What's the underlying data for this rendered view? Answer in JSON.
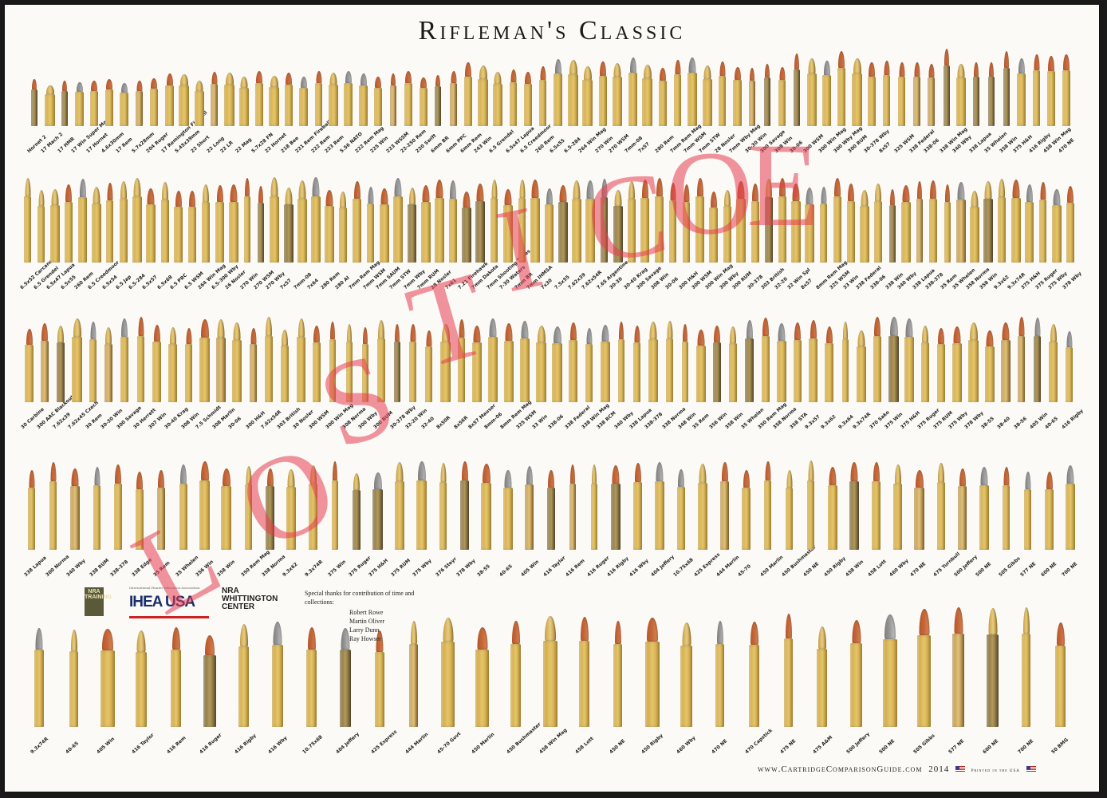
{
  "title": "Rifleman's Classic",
  "footer": {
    "site": "www.CartridgeComparisonGuide.com",
    "year": "2014",
    "credit": "Printed in the USA"
  },
  "thanks": {
    "intro": "Special thanks for contribution of time and collections:",
    "names": [
      "Robert Rowe",
      "Martin Oliver",
      "Larry Dunn",
      "Ray Howser"
    ]
  },
  "logos": {
    "nra": "NRA TRAINING",
    "ihea": "IHEA USA",
    "ihea_sub": "International Hunter Education Association",
    "whittington": [
      "NRA",
      "WHITTINGTON",
      "CENTER"
    ]
  },
  "watermark": "LOSTICOE",
  "colors": {
    "brass": "#c9a13e",
    "brass_light": "#e6c56a",
    "copper": "#c5683a",
    "lead": "#9a9a9a",
    "watermark": "#e63c50"
  },
  "rows": [
    {
      "labels": [
        "Hornet 2",
        "17 Mach 2",
        "17 HMR",
        "17 Win Super Mag",
        "17 Hornet",
        "4.6x30mm",
        "17 Rem",
        "5.7x28mm",
        "204 Ruger",
        "17 Remington Fireball",
        "5.45x39mm",
        "22 Short",
        "22 Long",
        "22 LR",
        "22 Mag",
        "5.7x28 FN",
        "22 Hornet",
        "218 Bee",
        "221 Rem Fireball",
        "222 Rem",
        "223 Rem",
        "5.56 NATO",
        "222 Rem Mag",
        "225 Win",
        "223 WSSM",
        "22-250 Rem",
        "220 Swift",
        "6mm BR",
        "6mm PPC",
        "6mm Rem",
        "243 Win",
        "6.5 Grendel",
        "6.5x47 Lapua",
        "6.5 Creedmoor",
        "260 Rem",
        "6.5x55",
        "6.5-284",
        "264 Win Mag",
        "270 Win",
        "270 WSM",
        "7mm-08",
        "7x57",
        "280 Rem",
        "7mm Rem Mag",
        "7mm WSM",
        "7mm STW",
        "28 Nosler",
        "7mm Wby Mag",
        "30-30 Win",
        "300 Savage",
        "308 Win",
        "30-06",
        "300 WSM",
        "300 Win Mag",
        "300 Wby Mag",
        "300 RUM",
        "30-378 Wby",
        "8x57",
        "325 WSM",
        "338 Federal",
        "338-06",
        "338 Win Mag",
        "340 Wby",
        "338 Lapua",
        "35 Whelen",
        "358 Win",
        "375 H&H",
        "416 Rigby",
        "458 Win Mag",
        "470 NE"
      ]
    },
    {
      "labels": [
        "6.5x52 Carcano",
        "6.5 Grendel",
        "6.5x47 Lapua",
        "6.5x55",
        "260 Rem",
        "6.5 Creedmoor",
        "6.5x54",
        "6.5 Jap",
        "6.5-284",
        "6.5x57",
        "6.5x68",
        "6.5 PRC",
        "6.5 WSM",
        "264 Win Mag",
        "6.5-300 Wby",
        "26 Nosler",
        "270 Win",
        "270 WSM",
        "270 Wby",
        "7x57",
        "7mm-08",
        "7x64",
        "280 Rem",
        "280 AI",
        "7mm Rem Mag",
        "7mm WSM",
        "7mm SAUM",
        "7mm STW",
        "7mm Wby",
        "7mm RUM",
        "28 Nosler",
        "7x61",
        "7.21 Firehawk",
        "7mm Dakota",
        "7mm Shooting Times",
        "7-30 Waters",
        "7mm BR",
        "7mm IHMSA",
        "7x30",
        "7.5x55",
        "7.62x39",
        "7.62x54R",
        "7.65 Argentine",
        "30-30",
        "30-40 Krag",
        "300 Savage",
        "308 Win",
        "30-06",
        "300 H&H",
        "300 WSM",
        "300 Win Mag",
        "300 Wby",
        "300 RUM",
        "30-378",
        "303 British",
        "32-20",
        "32 Win Spl",
        "8x57",
        "8mm Rem Mag",
        "325 WSM",
        "33 Win",
        "338 Federal",
        "338-06",
        "338 Win",
        "340 Wby",
        "338 Lapua",
        "338-378",
        "35 Rem",
        "35 Whelen",
        "358 Norma",
        "358 Win",
        "9.3x62",
        "9.3x74R",
        "375 H&H",
        "375 Ruger",
        "375 Wby",
        "378 Wby"
      ]
    },
    {
      "labels": [
        "30 Carbine",
        "300 AAC Blackout",
        "7.62x39",
        "7.62x45 Czech",
        "30 Rem",
        "30-30 Win",
        "300 Savage",
        "30 Herrett",
        "307 Win",
        "30-40 Krag",
        "308 Win",
        "7.5 Schmidt",
        "308 Marlin",
        "30-06",
        "300 H&H",
        "7.62x54R",
        "303 British",
        "30 Nosler",
        "300 WSM",
        "300 Win Mag",
        "308 Norma",
        "300 Wby",
        "300 RUM",
        "30-378 Wby",
        "32-20 Win",
        "32-40",
        "8x50R",
        "8x56R",
        "8x57 Mauser",
        "8mm-06",
        "8mm Rem Mag",
        "325 WSM",
        "33 Win",
        "338-06",
        "338 Federal",
        "338 Win Mag",
        "338 RCM",
        "340 Wby",
        "338 Lapua",
        "338-378",
        "338 Norma",
        "348 Win",
        "35 Rem",
        "356 Win",
        "358 Win",
        "35 Whelen",
        "350 Rem Mag",
        "358 Norma",
        "358 STA",
        "9.3x57",
        "9.3x62",
        "9.3x64",
        "9.3x74R",
        "370 Sako",
        "375 Win",
        "375 H&H",
        "375 Ruger",
        "375 RUM",
        "375 Wby",
        "378 Wby",
        "38-55",
        "38-40",
        "38-56",
        "405 Win",
        "40-65",
        "416 Rigby"
      ]
    },
    {
      "labels": [
        "338 Lapua",
        "300 Norma",
        "340 Wby",
        "338 RUM",
        "338-378",
        "338 Edge",
        "35 Rem",
        "35 Whelen",
        "356 Win",
        "358 Win",
        "350 Rem Mag",
        "358 Norma",
        "9.3x62",
        "9.3x74R",
        "375 Win",
        "375 Ruger",
        "375 H&H",
        "375 RUM",
        "375 Wby",
        "376 Steyr",
        "378 Wby",
        "38-55",
        "40-65",
        "405 Win",
        "416 Taylor",
        "416 Rem",
        "416 Ruger",
        "416 Rigby",
        "416 Wby",
        "404 Jeffery",
        "10.75x68",
        "425 Express",
        "444 Marlin",
        "45-70",
        "450 Marlin",
        "450 Bushmaster",
        "450 NE",
        "450 Rigby",
        "458 Win",
        "458 Lott",
        "460 Wby",
        "470 NE",
        "475 Turnbull",
        "500 Jeffery",
        "500 NE",
        "505 Gibbs",
        "577 NE",
        "600 NE",
        "700 NE"
      ]
    },
    {
      "labels": [
        "9.3x74R",
        "40-65",
        "405 Win",
        "416 Taylor",
        "416 Rem",
        "416 Ruger",
        "416 Rigby",
        "416 Wby",
        "10.75x68",
        "404 Jeffery",
        "425 Express",
        "444 Marlin",
        "45-70 Govt",
        "450 Marlin",
        "450 Bushmaster",
        "458 Win Mag",
        "458 Lott",
        "450 NE",
        "450 Rigby",
        "460 Wby",
        "470 NE",
        "470 Capstick",
        "475 NE",
        "475 A&M",
        "500 Jeffery",
        "500 NE",
        "505 Gibbs",
        "577 NE",
        "600 NE",
        "700 NE",
        "50 BMG"
      ]
    }
  ]
}
